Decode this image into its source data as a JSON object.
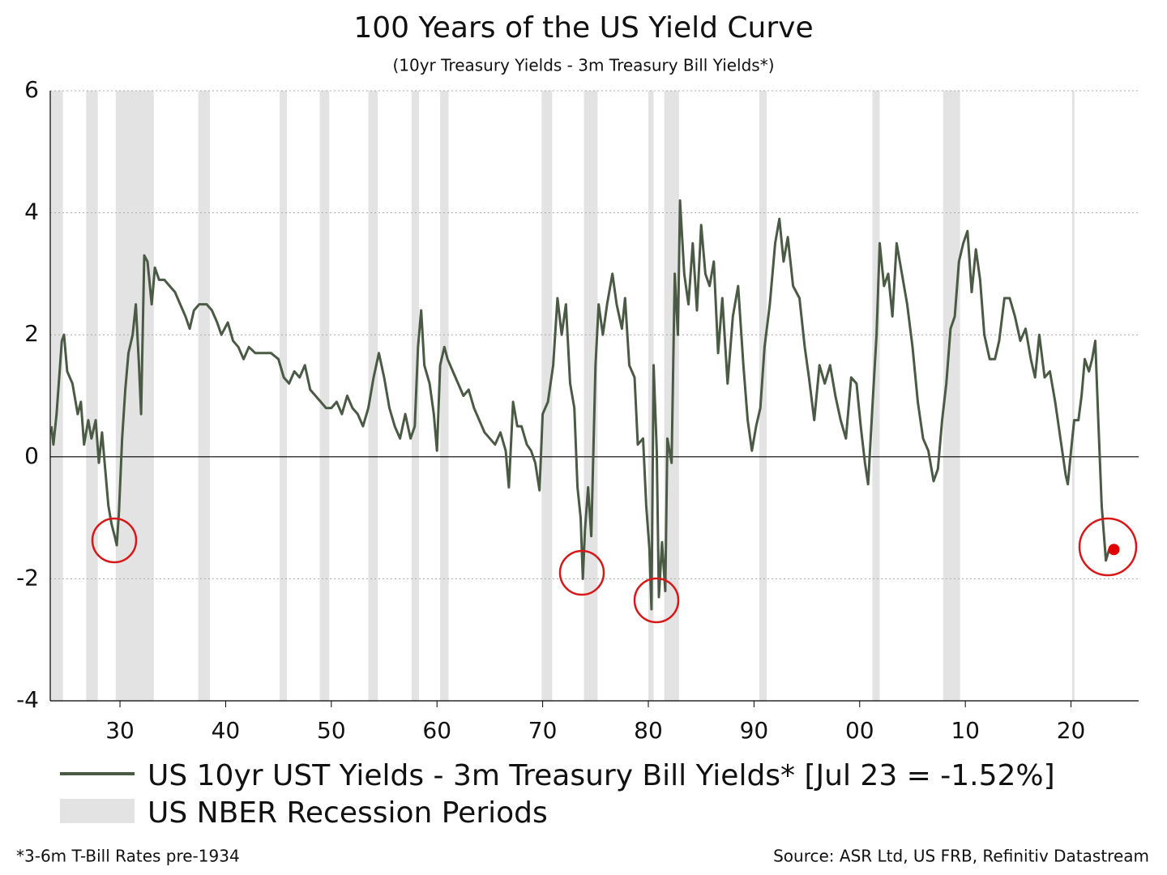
{
  "chart_data": {
    "type": "line",
    "title": "100 Years of the US Yield Curve",
    "subtitle": "(10yr Treasury Yields - 3m Treasury Bill Yields*)",
    "footnote": "*3-6m T-Bill Rates pre-1934",
    "source": "Source: ASR Ltd, US FRB, Refinitiv Datastream",
    "xlim": [
      1923.4,
      2026.4
    ],
    "ylim": [
      -4,
      6
    ],
    "yticks": [
      -4,
      -2,
      0,
      2,
      4,
      6
    ],
    "xticks": [
      {
        "value": 1930,
        "label": "30"
      },
      {
        "value": 1940,
        "label": "40"
      },
      {
        "value": 1950,
        "label": "50"
      },
      {
        "value": 1960,
        "label": "60"
      },
      {
        "value": 1970,
        "label": "70"
      },
      {
        "value": 1980,
        "label": "80"
      },
      {
        "value": 1990,
        "label": "90"
      },
      {
        "value": 2000,
        "label": "00"
      },
      {
        "value": 2010,
        "label": "10"
      },
      {
        "value": 2020,
        "label": "20"
      }
    ],
    "grid": true,
    "recessions": {
      "name": "US NBER Recession Periods",
      "color": "#e3e3e3",
      "periods": [
        [
          1923.4,
          1924.6
        ],
        [
          1926.8,
          1927.9
        ],
        [
          1929.6,
          1933.2
        ],
        [
          1937.4,
          1938.5
        ],
        [
          1945.1,
          1945.8
        ],
        [
          1948.9,
          1949.8
        ],
        [
          1953.5,
          1954.4
        ],
        [
          1957.6,
          1958.3
        ],
        [
          1960.3,
          1961.1
        ],
        [
          1969.9,
          1970.9
        ],
        [
          1973.9,
          1975.2
        ],
        [
          1980.0,
          1980.5
        ],
        [
          1981.5,
          1982.9
        ],
        [
          1990.5,
          1991.2
        ],
        [
          2001.2,
          2001.9
        ],
        [
          2007.9,
          2009.5
        ],
        [
          2020.1,
          2020.3
        ]
      ]
    },
    "x": [
      1923.5,
      1923.7,
      1924.0,
      1924.5,
      1924.7,
      1925.0,
      1925.5,
      1926.0,
      1926.3,
      1926.6,
      1927.0,
      1927.3,
      1927.7,
      1928.0,
      1928.3,
      1928.6,
      1928.9,
      1929.2,
      1929.5,
      1929.7,
      1929.9,
      1930.2,
      1930.5,
      1930.8,
      1931.2,
      1931.5,
      1931.8,
      1932.0,
      1932.3,
      1932.6,
      1933.0,
      1933.3,
      1933.7,
      1934.2,
      1934.7,
      1935.2,
      1935.7,
      1936.2,
      1936.6,
      1937.0,
      1937.5,
      1938.2,
      1938.7,
      1939.2,
      1939.6,
      1940.2,
      1940.7,
      1941.2,
      1941.7,
      1942.2,
      1942.8,
      1943.5,
      1944.3,
      1945.0,
      1945.5,
      1946.0,
      1946.5,
      1947.0,
      1947.5,
      1948.0,
      1948.5,
      1949.0,
      1949.5,
      1950.0,
      1950.5,
      1951.0,
      1951.5,
      1952.0,
      1952.5,
      1953.0,
      1953.5,
      1954.0,
      1954.5,
      1955.0,
      1955.5,
      1956.0,
      1956.5,
      1957.0,
      1957.5,
      1957.9,
      1958.2,
      1958.5,
      1958.8,
      1959.3,
      1959.7,
      1960.0,
      1960.3,
      1960.7,
      1961.0,
      1961.5,
      1962.0,
      1962.5,
      1963.0,
      1963.5,
      1964.0,
      1964.5,
      1965.0,
      1965.5,
      1966.0,
      1966.5,
      1966.8,
      1967.2,
      1967.6,
      1968.0,
      1968.5,
      1968.9,
      1969.3,
      1969.7,
      1970.0,
      1970.5,
      1971.0,
      1971.4,
      1971.8,
      1972.2,
      1972.6,
      1973.0,
      1973.3,
      1973.6,
      1973.8,
      1974.0,
      1974.3,
      1974.6,
      1975.0,
      1975.3,
      1975.7,
      1976.1,
      1976.6,
      1977.0,
      1977.5,
      1977.8,
      1978.2,
      1978.7,
      1979.0,
      1979.5,
      1979.8,
      1980.1,
      1980.3,
      1980.5,
      1980.8,
      1981.0,
      1981.3,
      1981.6,
      1981.8,
      1982.2,
      1982.5,
      1982.8,
      1983.0,
      1983.4,
      1983.8,
      1984.2,
      1984.6,
      1985.0,
      1985.4,
      1985.8,
      1986.2,
      1986.6,
      1987.0,
      1987.5,
      1988.0,
      1988.5,
      1989.0,
      1989.4,
      1989.8,
      1990.2,
      1990.6,
      1991.0,
      1991.5,
      1992.0,
      1992.4,
      1992.8,
      1993.2,
      1993.7,
      1994.3,
      1994.8,
      1995.2,
      1995.7,
      1996.2,
      1996.7,
      1997.2,
      1997.7,
      1998.2,
      1998.7,
      1999.2,
      1999.7,
      2000.1,
      2000.5,
      2000.8,
      2001.2,
      2001.6,
      2001.9,
      2002.3,
      2002.7,
      2003.1,
      2003.5,
      2004.0,
      2004.5,
      2005.0,
      2005.5,
      2006.0,
      2006.5,
      2007.0,
      2007.4,
      2007.8,
      2008.2,
      2008.6,
      2009.0,
      2009.4,
      2009.8,
      2010.2,
      2010.6,
      2011.0,
      2011.4,
      2011.8,
      2012.3,
      2012.8,
      2013.2,
      2013.7,
      2014.2,
      2014.7,
      2015.2,
      2015.7,
      2016.2,
      2016.6,
      2017.0,
      2017.5,
      2018.0,
      2018.5,
      2019.0,
      2019.5,
      2019.7,
      2020.0,
      2020.3,
      2020.7,
      2021.0,
      2021.3,
      2021.7,
      2022.0,
      2022.3,
      2022.6,
      2022.9,
      2023.3,
      2023.6
    ],
    "series": [
      {
        "name": "US 10yr UST Yields - 3m Treasury Bill Yields* [Jul 23 = -1.52%]",
        "color": "#4b5a44",
        "highlight_color": "#e00000",
        "values": [
          0.5,
          0.2,
          0.7,
          1.9,
          2.0,
          1.4,
          1.2,
          0.7,
          0.9,
          0.2,
          0.6,
          0.3,
          0.6,
          -0.1,
          0.4,
          -0.2,
          -0.8,
          -1.1,
          -1.3,
          -1.45,
          -0.9,
          0.3,
          1.1,
          1.7,
          2.0,
          2.5,
          1.5,
          0.7,
          3.3,
          3.2,
          2.5,
          3.1,
          2.9,
          2.9,
          2.8,
          2.7,
          2.5,
          2.3,
          2.1,
          2.4,
          2.5,
          2.5,
          2.4,
          2.2,
          2.0,
          2.2,
          1.9,
          1.8,
          1.6,
          1.8,
          1.7,
          1.7,
          1.7,
          1.6,
          1.3,
          1.2,
          1.4,
          1.3,
          1.5,
          1.1,
          1.0,
          0.9,
          0.8,
          0.8,
          0.9,
          0.7,
          1.0,
          0.8,
          0.7,
          0.5,
          0.8,
          1.3,
          1.7,
          1.3,
          0.8,
          0.5,
          0.3,
          0.7,
          0.3,
          0.5,
          1.8,
          2.4,
          1.5,
          1.2,
          0.7,
          0.1,
          1.5,
          1.8,
          1.6,
          1.4,
          1.2,
          1.0,
          1.1,
          0.8,
          0.6,
          0.4,
          0.3,
          0.2,
          0.4,
          0.1,
          -0.5,
          0.9,
          0.5,
          0.5,
          0.2,
          0.1,
          -0.1,
          -0.55,
          0.7,
          0.9,
          1.5,
          2.6,
          2.0,
          2.5,
          1.2,
          0.8,
          -0.5,
          -1.0,
          -2.0,
          -1.2,
          -0.5,
          -1.3,
          1.5,
          2.5,
          2.0,
          2.5,
          3.0,
          2.5,
          2.1,
          2.6,
          1.5,
          1.3,
          0.2,
          0.3,
          -0.8,
          -1.5,
          -2.5,
          1.5,
          0.1,
          -2.3,
          -1.4,
          -2.2,
          0.3,
          -0.1,
          3.0,
          2.0,
          4.2,
          3.0,
          2.5,
          3.5,
          2.4,
          3.8,
          3.0,
          2.8,
          3.2,
          1.7,
          2.6,
          1.2,
          2.3,
          2.8,
          1.5,
          0.6,
          0.1,
          0.5,
          0.8,
          1.8,
          2.5,
          3.5,
          3.9,
          3.2,
          3.6,
          2.8,
          2.6,
          1.8,
          1.3,
          0.6,
          1.5,
          1.2,
          1.5,
          1.0,
          0.6,
          0.3,
          1.3,
          1.2,
          0.5,
          -0.1,
          -0.45,
          0.8,
          2.0,
          3.5,
          2.8,
          3.0,
          2.3,
          3.5,
          3.0,
          2.5,
          1.8,
          0.9,
          0.3,
          0.1,
          -0.4,
          -0.2,
          0.6,
          1.2,
          2.1,
          2.3,
          3.2,
          3.5,
          3.7,
          2.7,
          3.4,
          2.9,
          2.0,
          1.6,
          1.6,
          1.9,
          2.6,
          2.6,
          2.3,
          1.9,
          2.1,
          1.6,
          1.3,
          2.0,
          1.3,
          1.4,
          0.9,
          0.3,
          -0.3,
          -0.45,
          0.1,
          0.6,
          0.6,
          1.0,
          1.6,
          1.4,
          1.6,
          1.9,
          0.5,
          -0.8,
          -1.7,
          -1.52
        ]
      }
    ]
  }
}
